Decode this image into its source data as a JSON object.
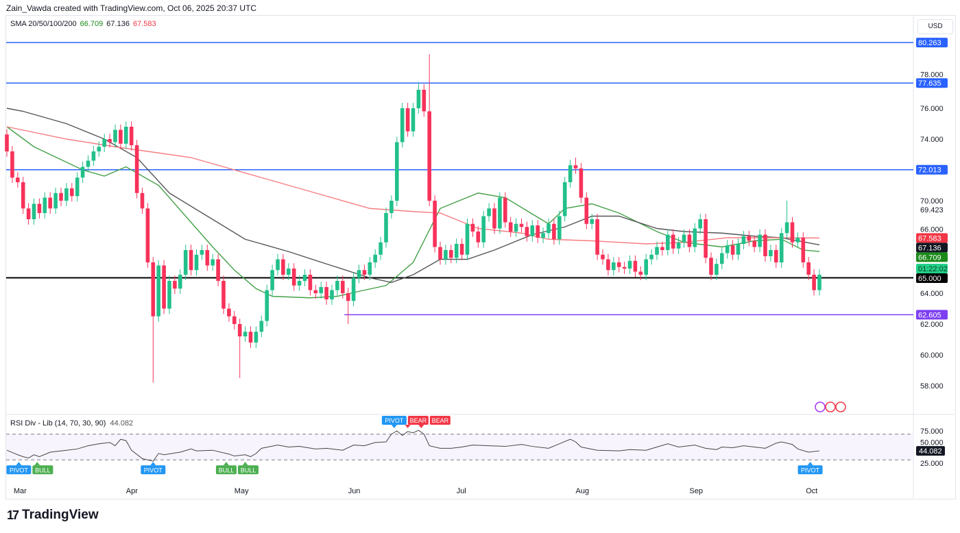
{
  "credit": "Zain_Vawda created with TradingView.com, Oct 06, 2025 20:37 UTC",
  "legend": {
    "name": "SMA 20/50/100/200",
    "v1": "66.709",
    "v2": "67.136",
    "v3": "67.583"
  },
  "currency": "USD",
  "rsi_legend": {
    "name": "RSI Div - Lib (14, 70, 30, 90)",
    "value": "44.082"
  },
  "logo": {
    "mark": "17",
    "text": "TradingView"
  },
  "colors": {
    "up": "#22ab94",
    "up2": "#08d68a",
    "down": "#f23645",
    "sma20": "#43a047",
    "sma50": "#555555",
    "sma200": "#f77c80",
    "blue": "#2962ff",
    "purple": "#7e3ff2"
  },
  "chart_data": {
    "type": "candlestick",
    "ylim": [
      56.5,
      82
    ],
    "y_ticks": [
      "58.000",
      "60.000",
      "62.000",
      "64.000",
      "66.000",
      "69.423",
      "70.000",
      "74.000",
      "76.000",
      "78.000"
    ],
    "y_tick_values": [
      58,
      60,
      62,
      64,
      66,
      69.423,
      70,
      74,
      76,
      78
    ],
    "x_months": [
      {
        "label": "Mar",
        "day": 1
      },
      {
        "label": "Apr",
        "day": 22
      },
      {
        "label": "May",
        "day": 42
      },
      {
        "label": "Jun",
        "day": 63
      },
      {
        "label": "Jul",
        "day": 83
      },
      {
        "label": "Aug",
        "day": 105
      },
      {
        "label": "Sep",
        "day": 126
      },
      {
        "label": "Oct",
        "day": 147.5
      }
    ],
    "closes": [
      73.2,
      71.5,
      71.2,
      69.5,
      68.8,
      69.8,
      69.2,
      70.2,
      69.5,
      70.5,
      70.0,
      70.8,
      70.3,
      71.5,
      72.2,
      72.6,
      73.2,
      73.5,
      74.0,
      73.8,
      74.6,
      73.7,
      74.8,
      73.6,
      70.5,
      69.5,
      66.0,
      62.5,
      65.8,
      63.0,
      64.8,
      64.3,
      65.2,
      66.8,
      65.5,
      66.5,
      66.8,
      65.8,
      66.2,
      64.8,
      63.0,
      62.5,
      62.0,
      61.2,
      61.5,
      60.8,
      61.5,
      62.2,
      64.2,
      65.5,
      66.2,
      65.2,
      65.6,
      64.5,
      64.8,
      65.2,
      64.2,
      64.0,
      64.4,
      63.6,
      64.2,
      64.8,
      64.0,
      63.5,
      65.0,
      65.5,
      65.2,
      66.0,
      66.5,
      67.3,
      69.2,
      70.0,
      73.8,
      76.0,
      74.5,
      76.0,
      77.2,
      75.8,
      70.0,
      67.0,
      66.2,
      66.8,
      66.3,
      67.2,
      66.5,
      68.5,
      68.0,
      67.3,
      69.0,
      69.5,
      68.2,
      70.2,
      68.6,
      68.0,
      68.5,
      68.3,
      67.7,
      68.4,
      67.6,
      67.9,
      68.5,
      67.5,
      69.0,
      71.2,
      72.3,
      72.1,
      70.2,
      68.5,
      68.8,
      66.5,
      66.2,
      65.5,
      66.0,
      65.7,
      65.6,
      66.1,
      65.4,
      65.2,
      66.2,
      66.5,
      67.0,
      66.8,
      67.8,
      66.9,
      67.3,
      67.8,
      67.0,
      68.2,
      68.8,
      66.3,
      65.2,
      65.9,
      66.6,
      67.1,
      66.5,
      67.2,
      67.7,
      67.4,
      67.0,
      67.8,
      66.4,
      66.8,
      66.0,
      67.9,
      68.6,
      67.3,
      67.6,
      66.0,
      65.2,
      64.2,
      65.2
    ],
    "first_open": 74.3,
    "wick_overrides": {
      "27": {
        "low": 58.2
      },
      "43": {
        "low": 58.5
      },
      "78": {
        "high": 79.5
      },
      "63": {
        "low": 62.0
      },
      "76": {
        "high": 77.7
      },
      "105": {
        "high": 72.8
      },
      "144": {
        "high": 70.0
      }
    },
    "sma": [
      {
        "name": "SMA 20",
        "value": "66.709",
        "color": "#43a047",
        "points": [
          [
            0,
            74.8
          ],
          [
            5,
            73.5
          ],
          [
            14,
            72
          ],
          [
            18,
            71.6
          ],
          [
            22,
            72.2
          ],
          [
            28,
            71
          ],
          [
            33,
            69
          ],
          [
            38,
            67
          ],
          [
            42,
            65.5
          ],
          [
            46,
            64.3
          ],
          [
            49,
            63.8
          ],
          [
            56,
            63.7
          ],
          [
            61,
            63.8
          ],
          [
            66,
            64.2
          ],
          [
            70,
            64.5
          ],
          [
            75,
            66
          ],
          [
            80,
            69.5
          ],
          [
            87,
            70.5
          ],
          [
            92,
            70.2
          ],
          [
            100,
            68.5
          ],
          [
            103,
            69.5
          ],
          [
            108,
            69.8
          ],
          [
            113,
            69.2
          ],
          [
            120,
            68
          ],
          [
            125,
            67.3
          ],
          [
            132,
            67
          ],
          [
            138,
            67.4
          ],
          [
            143,
            67.5
          ],
          [
            147,
            66.8
          ],
          [
            150,
            66.709
          ]
        ]
      },
      {
        "name": "SMA 50",
        "value": "67.136",
        "color": "#555555",
        "points": [
          [
            0,
            76
          ],
          [
            3,
            75.8
          ],
          [
            11,
            75
          ],
          [
            18,
            74
          ],
          [
            24,
            72.8
          ],
          [
            30,
            70.5
          ],
          [
            37,
            69
          ],
          [
            44,
            67.5
          ],
          [
            52,
            66.7
          ],
          [
            59,
            65.9
          ],
          [
            67,
            65
          ],
          [
            71,
            64.7
          ],
          [
            75,
            65.2
          ],
          [
            80,
            66.2
          ],
          [
            85,
            66.2
          ],
          [
            90,
            66.8
          ],
          [
            97,
            67.8
          ],
          [
            103,
            68.3
          ],
          [
            108,
            69
          ],
          [
            113,
            69
          ],
          [
            120,
            68.2
          ],
          [
            125,
            68
          ],
          [
            132,
            67.9
          ],
          [
            138,
            67.7
          ],
          [
            143,
            67.6
          ],
          [
            150,
            67.136
          ]
        ]
      },
      {
        "name": "SMA 200",
        "value": "67.583",
        "color": "#f77c80",
        "points": [
          [
            0,
            74.8
          ],
          [
            11,
            74
          ],
          [
            20,
            73.5
          ],
          [
            34,
            72.8
          ],
          [
            47,
            71.5
          ],
          [
            57,
            70.5
          ],
          [
            67,
            69.5
          ],
          [
            75,
            69.3
          ],
          [
            80,
            69.2
          ],
          [
            87,
            68.2
          ],
          [
            95,
            67.9
          ],
          [
            100,
            67.5
          ],
          [
            108,
            67.4
          ],
          [
            118,
            67.2
          ],
          [
            125,
            67.3
          ],
          [
            133,
            67.6
          ],
          [
            140,
            67.6
          ],
          [
            150,
            67.583
          ]
        ]
      }
    ],
    "levels": [
      {
        "value": 80.263,
        "label": "80.263",
        "color": "#2962ff",
        "from_day": -2
      },
      {
        "value": 77.635,
        "label": "77.635",
        "color": "#2962ff",
        "from_day": -2
      },
      {
        "value": 72.013,
        "label": "72.013",
        "color": "#2962ff",
        "from_day": -2
      },
      {
        "value": 65.0,
        "label": "65.000",
        "color": "#000000",
        "from_day": -2
      },
      {
        "value": 62.605,
        "label": "62.605",
        "color": "#7e3ff2",
        "from_day": 62.3
      }
    ],
    "price_tags": [
      {
        "value": 67.583,
        "label": "67.583",
        "color": "#f23645"
      },
      {
        "value": 67.136,
        "label": "67.136",
        "color": "#131722"
      },
      {
        "value": 66.709,
        "label": "66.709",
        "color": "#1b8a1b"
      },
      {
        "value": 65.6,
        "label": "01:22:02",
        "color": "#22d087",
        "text": "#0b3d27"
      }
    ],
    "rsi": {
      "ylim": [
        15,
        85
      ],
      "upper": 70,
      "lower": 30,
      "ticks": [
        "75.000",
        "50.000",
        "25.000"
      ],
      "tick_values": [
        75,
        50,
        25
      ],
      "current": "44.082",
      "points": [
        [
          0,
          45
        ],
        [
          2,
          38
        ],
        [
          3,
          35
        ],
        [
          4,
          33
        ],
        [
          5,
          38
        ],
        [
          6,
          35
        ],
        [
          8,
          42
        ],
        [
          11,
          45
        ],
        [
          13,
          47
        ],
        [
          15,
          52
        ],
        [
          17,
          55
        ],
        [
          19,
          57
        ],
        [
          20,
          52
        ],
        [
          21,
          62
        ],
        [
          22,
          60
        ],
        [
          23,
          45
        ],
        [
          25,
          32
        ],
        [
          27,
          28
        ],
        [
          28,
          40
        ],
        [
          29,
          38
        ],
        [
          32,
          42
        ],
        [
          34,
          47
        ],
        [
          35,
          44
        ],
        [
          38,
          45
        ],
        [
          41,
          39
        ],
        [
          42,
          36
        ],
        [
          44,
          38
        ],
        [
          45,
          35
        ],
        [
          46,
          40
        ],
        [
          47,
          48
        ],
        [
          50,
          53
        ],
        [
          52,
          50
        ],
        [
          54,
          51
        ],
        [
          57,
          47
        ],
        [
          59,
          48
        ],
        [
          62,
          45
        ],
        [
          64,
          53
        ],
        [
          66,
          52
        ],
        [
          68,
          57
        ],
        [
          70,
          58
        ],
        [
          71,
          70
        ],
        [
          72,
          75
        ],
        [
          73,
          68
        ],
        [
          74,
          74
        ],
        [
          75,
          72
        ],
        [
          76,
          76
        ],
        [
          77,
          70
        ],
        [
          78,
          52
        ],
        [
          80,
          48
        ],
        [
          82,
          48
        ],
        [
          84,
          50
        ],
        [
          86,
          53
        ],
        [
          89,
          52
        ],
        [
          92,
          51
        ],
        [
          95,
          54
        ],
        [
          97,
          51
        ],
        [
          100,
          48
        ],
        [
          102,
          55
        ],
        [
          104,
          62
        ],
        [
          105,
          58
        ],
        [
          106,
          50
        ],
        [
          109,
          45
        ],
        [
          113,
          44
        ],
        [
          115,
          46
        ],
        [
          118,
          45
        ],
        [
          120,
          50
        ],
        [
          122,
          55
        ],
        [
          124,
          50
        ],
        [
          127,
          53
        ],
        [
          129,
          48
        ],
        [
          131,
          46
        ],
        [
          132,
          50
        ],
        [
          134,
          49
        ],
        [
          136,
          52
        ],
        [
          138,
          50
        ],
        [
          140,
          48
        ],
        [
          142,
          56
        ],
        [
          143,
          58
        ],
        [
          145,
          54
        ],
        [
          146,
          47
        ],
        [
          148,
          42
        ],
        [
          150,
          44.082
        ]
      ],
      "markers": [
        {
          "label": "PIVOT",
          "day": 2.2,
          "color": "#2196f3",
          "pos": "below"
        },
        {
          "label": "BULL",
          "day": 5.6,
          "color": "#4caf50",
          "pos": "below"
        },
        {
          "label": "PIVOT",
          "day": 27,
          "color": "#2196f3",
          "pos": "below"
        },
        {
          "label": "BULL",
          "day": 40.5,
          "color": "#4caf50",
          "pos": "below"
        },
        {
          "label": "BULL",
          "day": 44,
          "color": "#4caf50",
          "pos": "below"
        },
        {
          "label": "PIVOT",
          "day": 71.5,
          "color": "#2196f3",
          "pos": "above"
        },
        {
          "label": "BEAR",
          "day": 74,
          "color": "#f23645",
          "pos": "above"
        },
        {
          "label": "BEAR",
          "day": 76.5,
          "color": "#f23645",
          "pos": "above"
        },
        {
          "label": "PIVOT",
          "day": 148.3,
          "color": "#2196f3",
          "pos": "below"
        }
      ]
    }
  }
}
